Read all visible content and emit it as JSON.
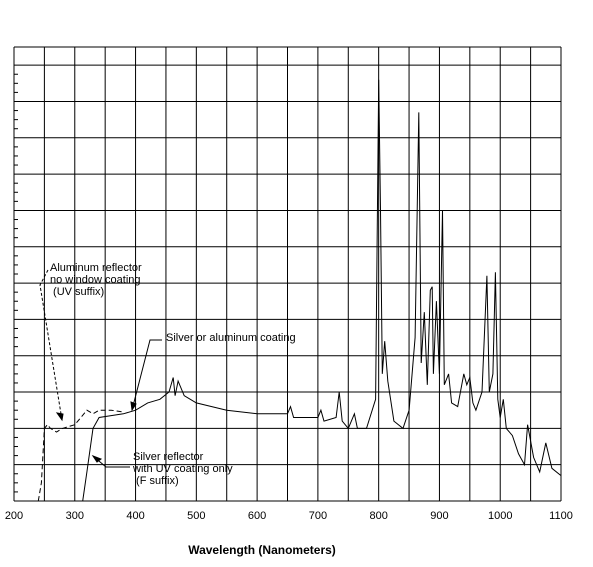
{
  "chart_data": {
    "type": "line",
    "x_label": "Wavelength (Nanometers)",
    "xlim": [
      200,
      1100
    ],
    "xticks": [
      200,
      300,
      400,
      500,
      600,
      700,
      800,
      900,
      1000,
      1100
    ],
    "xgrid": [
      200,
      250,
      300,
      350,
      400,
      450,
      500,
      550,
      600,
      650,
      700,
      750,
      800,
      850,
      900,
      950,
      1000,
      1050,
      1100
    ],
    "ylim": [
      0,
      12.5
    ],
    "yticks": [
      0,
      1,
      2,
      3,
      4,
      5,
      6,
      7,
      8,
      9,
      10,
      11,
      12
    ],
    "grid": true,
    "annotations": [
      {
        "lines": [
          "Aluminum reflector",
          "no window coating",
          " (UV suffix)"
        ]
      },
      {
        "lines": [
          "Silver or aluminum coating"
        ]
      },
      {
        "lines": [
          "Silver reflector",
          "with UV coating only",
          " (F suffix)"
        ]
      }
    ],
    "series": [
      {
        "color": "#000",
        "dash": false,
        "x": [
          313,
          320,
          330,
          340,
          360,
          380,
          400,
          420,
          440,
          455,
          462,
          465,
          470,
          480,
          490,
          500,
          550,
          600,
          650,
          655,
          660,
          700,
          705,
          710,
          730,
          735,
          740,
          750,
          760,
          765,
          780,
          795,
          800,
          803,
          806,
          810,
          815,
          825,
          840,
          850,
          860,
          866,
          870,
          875,
          880,
          885,
          888,
          890,
          895,
          900,
          905,
          908,
          915,
          920,
          930,
          940,
          945,
          950,
          955,
          960,
          970,
          978,
          982,
          988,
          992,
          996,
          1000,
          1005,
          1010,
          1020,
          1030,
          1040,
          1045,
          1055,
          1065,
          1075,
          1085,
          1100
        ],
        "values": [
          0,
          0.8,
          2.0,
          2.3,
          2.35,
          2.4,
          2.5,
          2.7,
          2.8,
          3.0,
          3.4,
          2.9,
          3.3,
          2.9,
          2.8,
          2.7,
          2.5,
          2.4,
          2.4,
          2.6,
          2.3,
          2.3,
          2.5,
          2.2,
          2.3,
          3.0,
          2.2,
          2.0,
          2.4,
          2.0,
          2.0,
          2.8,
          11.6,
          8.0,
          3.5,
          4.4,
          3.3,
          2.2,
          2.0,
          2.5,
          4.5,
          10.7,
          3.8,
          5.2,
          3.2,
          5.8,
          5.9,
          3.5,
          5.5,
          3.5,
          8.0,
          3.2,
          3.5,
          2.7,
          2.6,
          3.5,
          3.2,
          3.4,
          2.7,
          2.5,
          3.0,
          6.2,
          3.0,
          3.5,
          6.3,
          2.8,
          2.3,
          2.8,
          2.0,
          1.8,
          1.3,
          1.0,
          2.1,
          1.2,
          0.8,
          1.6,
          0.9,
          0.7
        ]
      },
      {
        "color": "#000",
        "dash": true,
        "x": [
          240,
          245,
          250,
          255,
          260,
          270,
          280,
          300,
          310,
          320,
          330,
          340,
          360,
          380
        ],
        "values": [
          0,
          0.5,
          2.0,
          2.1,
          2.0,
          1.9,
          2.0,
          2.1,
          2.3,
          2.5,
          2.4,
          2.5,
          2.5,
          2.45
        ]
      }
    ]
  }
}
